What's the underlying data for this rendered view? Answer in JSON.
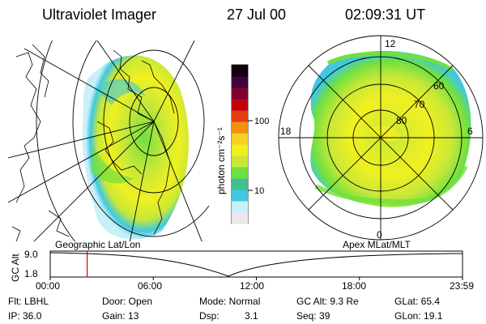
{
  "header": {
    "instrument": "Ultraviolet Imager",
    "date": "27 Jul 00",
    "time": "02:09:31 UT"
  },
  "colorbar": {
    "unit_label": "photon cm⁻²s⁻¹",
    "ticks": [
      "100",
      "10"
    ],
    "scale": "log",
    "colors": [
      "#e8e8e8",
      "#c8f0f8",
      "#40c8e0",
      "#40c090",
      "#70e040",
      "#c8e838",
      "#f0f020",
      "#f8d020",
      "#f09010",
      "#e04010",
      "#c00010",
      "#800030",
      "#400040",
      "#100010"
    ]
  },
  "left_map": {
    "label": "Geographic Lat/Lon"
  },
  "right_map": {
    "label": "Apex MLat/MLT",
    "mlt_labels": [
      "12",
      "18",
      "6",
      "0"
    ],
    "lat_labels": [
      "60",
      "70",
      "80"
    ]
  },
  "timeline": {
    "ylabel": "GC Alt",
    "ymax": "9.0",
    "ymin": "1.8",
    "xticks": [
      "00:00",
      "06:00",
      "12:00",
      "18:00",
      "23:59"
    ],
    "current_marker_time": "02:09",
    "marker_color": "#cc0000"
  },
  "status": {
    "row1": {
      "filter": "Flt: LBHL",
      "door": "Door: Open",
      "mode": "Mode: Normal",
      "gc_alt": "GC Alt: 9.3 Re",
      "glat": "GLat: 65.4"
    },
    "row2": {
      "ip": "IP: 36.0",
      "gain": "Gain: 13",
      "dsp_label": "Dsp:",
      "dsp_value": "3.1",
      "seq": "Seq: 39",
      "glon": "GLon: 19.1"
    }
  }
}
